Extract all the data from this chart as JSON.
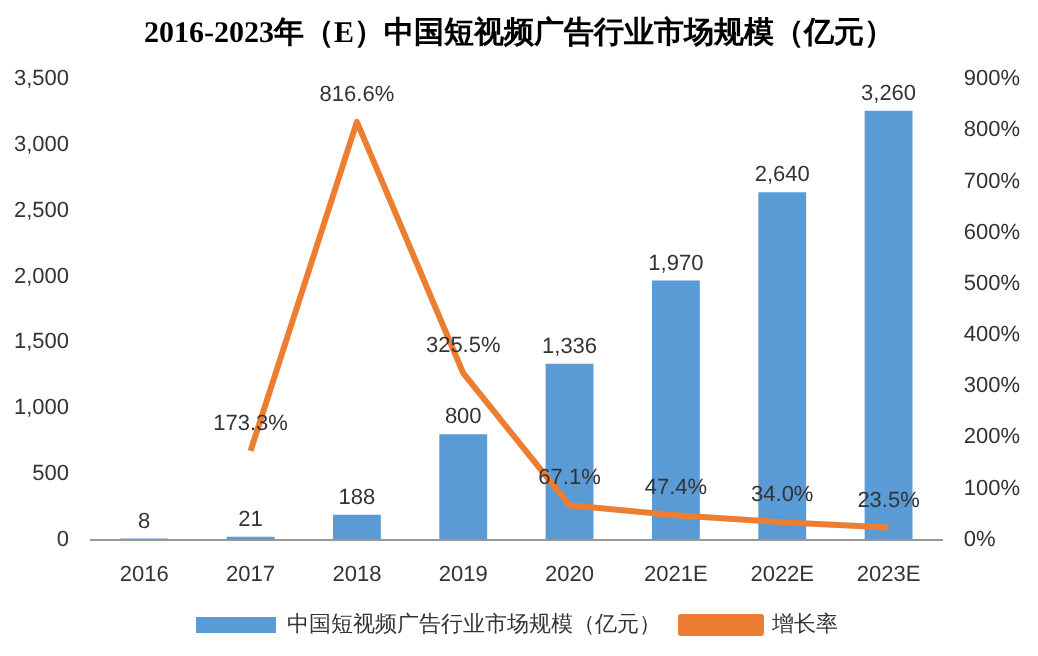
{
  "chart_data": {
    "type": "bar",
    "title": "2016-2023年（E）中国短视频广告行业市场规模（亿元）",
    "categories": [
      "2016",
      "2017",
      "2018",
      "2019",
      "2020",
      "2021E",
      "2022E",
      "2023E"
    ],
    "series": [
      {
        "name": "中国短视频广告行业市场规模（亿元）",
        "color": "#5b9bd5",
        "values": [
          8,
          21,
          188,
          800,
          1336,
          1970,
          2640,
          3260
        ],
        "value_labels": [
          "8",
          "21",
          "188",
          "800",
          "1,336",
          "1,970",
          "2,640",
          "3,260"
        ]
      },
      {
        "name": "增长率",
        "type": "line",
        "axis": "y2",
        "color": "#ed7d31",
        "values": [
          null,
          173.3,
          816.6,
          325.5,
          67.1,
          47.4,
          34.0,
          23.5
        ],
        "value_labels": [
          null,
          "173.3%",
          "816.6%",
          "325.5%",
          "67.1%",
          "47.4%",
          "34.0%",
          "23.5%"
        ]
      }
    ],
    "ylim": [
      0,
      3500
    ],
    "yticks": [
      0,
      {
        "value": 500,
        "label": "500"
      },
      {
        "value": 1000,
        "label": "1,000"
      },
      {
        "value": 1500,
        "label": "1,500"
      },
      {
        "value": 2000,
        "label": "2,000"
      },
      {
        "value": 2500,
        "label": "2,500"
      },
      {
        "value": 3000,
        "label": "3,000"
      },
      {
        "value": 3500,
        "label": "3,500"
      }
    ],
    "y2lim": [
      0,
      900
    ],
    "y2ticks": [
      {
        "value": 0,
        "label": "0%"
      },
      {
        "value": 100,
        "label": "100%"
      },
      {
        "value": 200,
        "label": "200%"
      },
      {
        "value": 300,
        "label": "300%"
      },
      {
        "value": 400,
        "label": "400%"
      },
      {
        "value": 500,
        "label": "500%"
      },
      {
        "value": 600,
        "label": "600%"
      },
      {
        "value": 700,
        "label": "700%"
      },
      {
        "value": 800,
        "label": "800%"
      },
      {
        "value": 900,
        "label": "900%"
      }
    ],
    "grid": false,
    "legend": "bottom",
    "marker": "none"
  }
}
